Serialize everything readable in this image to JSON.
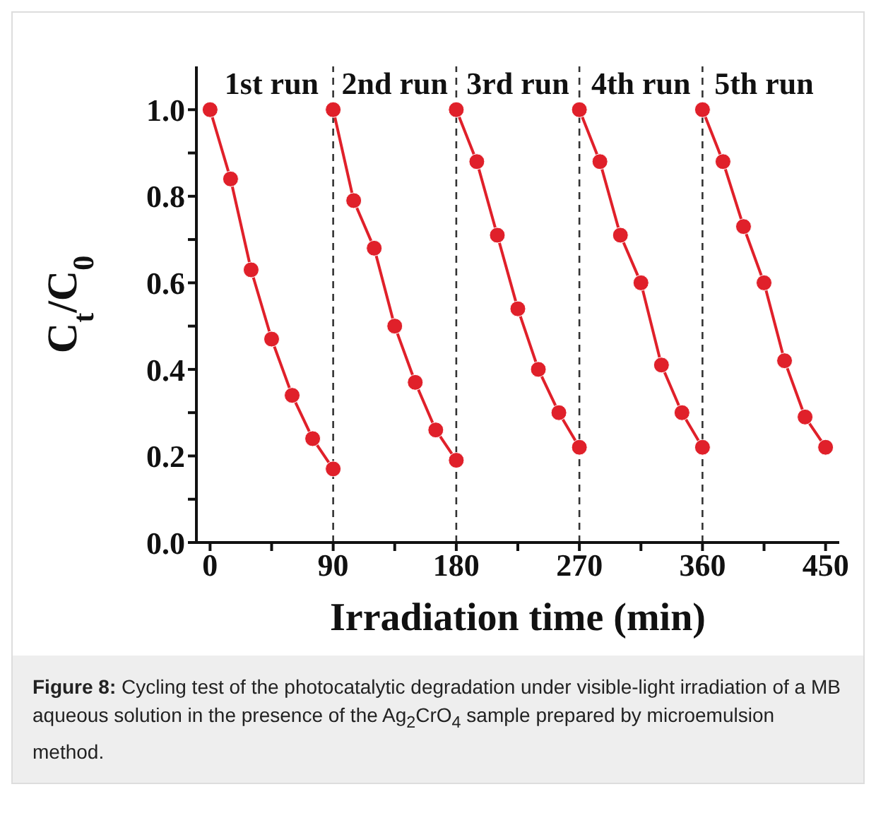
{
  "chart_data": {
    "type": "line",
    "xlabel": "Irradiation time (min)",
    "ylabel": "C$_{t}$/C$_{0}$",
    "xlim": [
      -10,
      460
    ],
    "xticks": [
      0,
      {
        "value": 45,
        "label": null
      },
      90,
      {
        "value": 135,
        "label": null
      },
      180,
      {
        "value": 225,
        "label": null
      },
      270,
      {
        "value": 315,
        "label": null
      },
      360,
      {
        "value": 405,
        "label": null
      },
      450
    ],
    "ylim": [
      0,
      1.1
    ],
    "yticks": [
      {
        "value": 0,
        "label": "0.0"
      },
      {
        "value": 0.1,
        "label": null
      },
      0.2,
      {
        "value": 0.3,
        "label": null
      },
      0.4,
      {
        "value": 0.5,
        "label": null
      },
      0.6,
      {
        "value": 0.7,
        "label": null
      },
      0.8,
      {
        "value": 0.9,
        "label": null
      },
      {
        "value": 1,
        "label": "1.0"
      }
    ],
    "series": [
      {
        "color": "#e0202a",
        "x": [
          0,
          15,
          30,
          45,
          60,
          75,
          90
        ],
        "values": [
          1.0,
          0.84,
          0.63,
          0.47,
          0.34,
          0.24,
          0.17
        ]
      },
      {
        "color": "#e0202a",
        "x": [
          90,
          105,
          120,
          135,
          150,
          165,
          180
        ],
        "values": [
          1.0,
          0.79,
          0.68,
          0.5,
          0.37,
          0.26,
          0.19
        ]
      },
      {
        "color": "#e0202a",
        "x": [
          180,
          195,
          210,
          225,
          240,
          255,
          270
        ],
        "values": [
          1.0,
          0.88,
          0.71,
          0.54,
          0.4,
          0.3,
          0.22
        ]
      },
      {
        "color": "#e0202a",
        "x": [
          270,
          285,
          300,
          315,
          330,
          345,
          360
        ],
        "values": [
          1.0,
          0.88,
          0.71,
          0.6,
          0.41,
          0.3,
          0.22
        ]
      },
      {
        "color": "#e0202a",
        "x": [
          360,
          375,
          390,
          405,
          420,
          435,
          450
        ],
        "values": [
          1.0,
          0.88,
          0.73,
          0.6,
          0.42,
          0.29,
          0.22
        ]
      }
    ],
    "marker": "circle",
    "line_style": "solid",
    "grid": false,
    "ref_lines": [
      {
        "axis": "x",
        "value": 90,
        "label": null,
        "line_style": "dashed",
        "color": "#333333"
      },
      {
        "axis": "x",
        "value": 180,
        "label": null,
        "line_style": "dashed",
        "color": "#333333"
      },
      {
        "axis": "x",
        "value": 270,
        "label": null,
        "line_style": "dashed",
        "color": "#333333"
      },
      {
        "axis": "x",
        "value": 360,
        "label": null,
        "line_style": "dashed",
        "color": "#333333"
      }
    ],
    "annotations": [
      "1st run",
      "2nd run",
      "3rd run",
      "4th run",
      "5th run",
      "Figure 8: Cycling test of the photocatalytic degradation under visible-light irradiation of a MB aqueous solution in the presence of the Ag$_{2}$CrO$_{4}$ sample prepared by microemulsion method."
    ]
  }
}
